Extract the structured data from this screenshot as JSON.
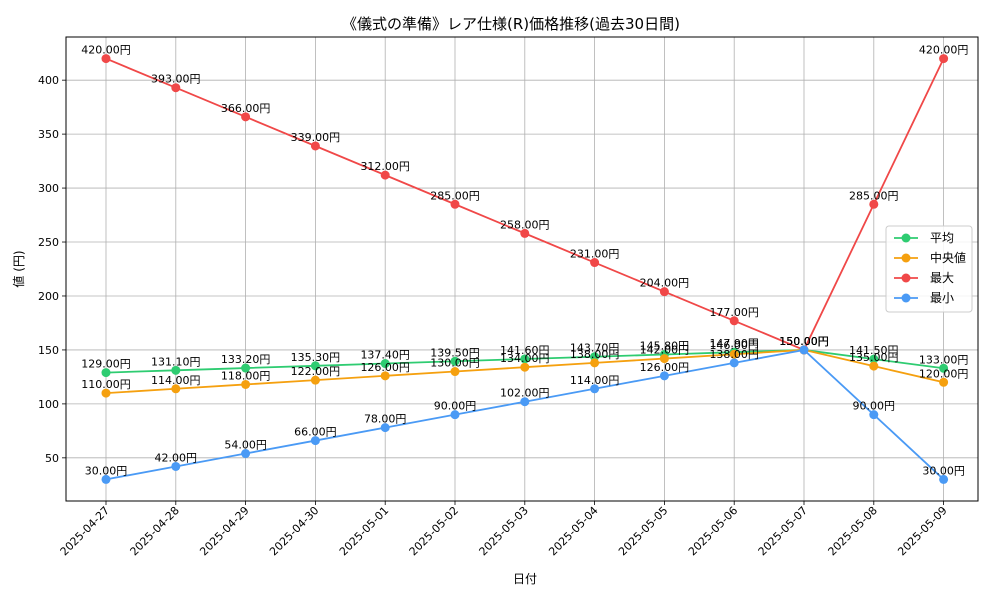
{
  "chart_data": {
    "type": "line",
    "title": "《儀式の準備》レア仕様(R)価格推移(過去30日間)",
    "xlabel": "日付",
    "ylabel": "値 (円)",
    "ylim": [
      10,
      440
    ],
    "yticks": [
      50,
      100,
      150,
      200,
      250,
      300,
      350,
      400
    ],
    "grid": true,
    "legend_position": "right",
    "label_suffix": "円",
    "x": [
      "2025-04-27",
      "2025-04-28",
      "2025-04-29",
      "2025-04-30",
      "2025-05-01",
      "2025-05-02",
      "2025-05-03",
      "2025-05-04",
      "2025-05-05",
      "2025-05-06",
      "2025-05-07",
      "2025-05-08",
      "2025-05-09"
    ],
    "series": [
      {
        "name": "平均",
        "color": "#2ecc71",
        "values": [
          129.0,
          131.1,
          133.2,
          135.3,
          137.4,
          139.5,
          141.6,
          143.7,
          145.8,
          147.9,
          150.0,
          141.5,
          133.0
        ]
      },
      {
        "name": "中央値",
        "color": "#f5a00f",
        "values": [
          110.0,
          114.0,
          118.0,
          122.0,
          126.0,
          130.0,
          134.0,
          138.0,
          142.0,
          146.0,
          150.0,
          135.0,
          120.0
        ]
      },
      {
        "name": "最大",
        "color": "#f04848",
        "values": [
          420.0,
          393.0,
          366.0,
          339.0,
          312.0,
          285.0,
          258.0,
          231.0,
          204.0,
          177.0,
          150.0,
          285.0,
          420.0
        ]
      },
      {
        "name": "最小",
        "color": "#4a9af5",
        "values": [
          30.0,
          42.0,
          54.0,
          66.0,
          78.0,
          90.0,
          102.0,
          114.0,
          126.0,
          138.0,
          150.0,
          90.0,
          30.0
        ]
      }
    ]
  }
}
